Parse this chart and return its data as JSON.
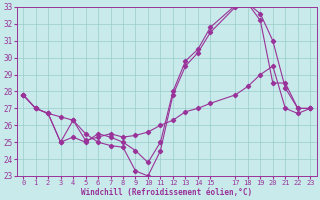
{
  "xlabel": "Windchill (Refroidissement éolien,°C)",
  "bg_color": "#c8eaea",
  "line_color": "#993399",
  "grid_color": "#99cccc",
  "xlim": [
    -0.5,
    23.5
  ],
  "ylim": [
    23,
    33
  ],
  "xticks": [
    0,
    1,
    2,
    3,
    4,
    5,
    6,
    7,
    8,
    9,
    10,
    11,
    12,
    13,
    14,
    15,
    17,
    18,
    19,
    20,
    21,
    22,
    23
  ],
  "yticks": [
    23,
    24,
    25,
    26,
    27,
    28,
    29,
    30,
    31,
    32,
    33
  ],
  "hours": [
    0,
    1,
    2,
    3,
    4,
    5,
    6,
    7,
    8,
    9,
    10,
    11,
    12,
    13,
    14,
    15,
    17,
    18,
    19,
    20,
    21,
    22,
    23
  ],
  "line1_y": [
    27.8,
    27.0,
    26.7,
    26.5,
    26.3,
    25.1,
    25.3,
    25.5,
    25.3,
    25.4,
    25.6,
    26.0,
    26.3,
    26.8,
    27.0,
    27.3,
    27.8,
    28.3,
    29.0,
    29.5,
    27.0,
    26.7,
    27.0
  ],
  "line2_y": [
    27.8,
    27.0,
    26.7,
    25.0,
    26.3,
    25.5,
    25.0,
    24.8,
    24.7,
    23.3,
    23.0,
    24.5,
    27.8,
    29.5,
    30.3,
    31.5,
    33.0,
    33.2,
    32.6,
    31.0,
    28.2,
    27.0,
    27.0
  ],
  "line3_y": [
    27.8,
    27.0,
    26.7,
    25.0,
    25.3,
    25.0,
    25.5,
    25.3,
    25.0,
    24.5,
    23.8,
    25.0,
    28.0,
    29.8,
    30.5,
    31.8,
    33.1,
    33.2,
    32.2,
    28.5,
    28.5,
    27.0,
    27.0
  ]
}
